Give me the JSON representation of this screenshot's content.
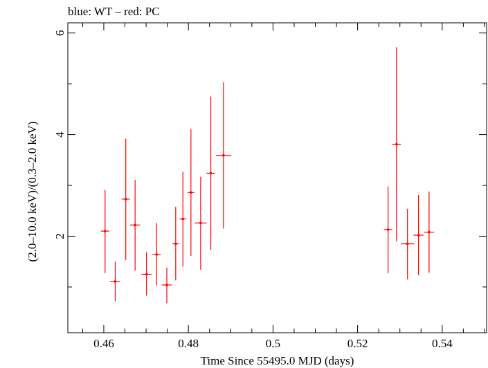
{
  "chart_data": {
    "type": "scatter",
    "title": "blue: WT – red: PC",
    "xlabel": "Time Since 55495.0 MJD (days)",
    "ylabel": "(2.0–10.0 keV)/(0.3–2.0 keV)",
    "xlim": [
      0.4515,
      0.5505
    ],
    "ylim": [
      0.1,
      6.2
    ],
    "x_ticks": [
      0.46,
      0.48,
      0.5,
      0.52,
      0.54
    ],
    "x_tick_labels": [
      "0.46",
      "0.48",
      "0.5",
      "0.52",
      "0.54"
    ],
    "x_minor_step": 0.005,
    "y_ticks": [
      2,
      4,
      6
    ],
    "y_tick_labels": [
      "2",
      "4",
      "6"
    ],
    "y_minor_step": 1,
    "grid": false,
    "series": [
      {
        "color": "#ff0000",
        "points": [
          {
            "x": 0.4603,
            "xerr": 0.001,
            "y": 2.1,
            "ylo": 1.27,
            "yhi": 2.91
          },
          {
            "x": 0.4627,
            "xerr": 0.0012,
            "y": 1.11,
            "ylo": 0.72,
            "yhi": 1.5
          },
          {
            "x": 0.4652,
            "xerr": 0.001,
            "y": 2.73,
            "ylo": 1.53,
            "yhi": 3.92
          },
          {
            "x": 0.4674,
            "xerr": 0.0012,
            "y": 2.22,
            "ylo": 1.32,
            "yhi": 3.11
          },
          {
            "x": 0.4701,
            "xerr": 0.0012,
            "y": 1.25,
            "ylo": 0.83,
            "yhi": 1.69
          },
          {
            "x": 0.4725,
            "xerr": 0.001,
            "y": 1.64,
            "ylo": 1.03,
            "yhi": 2.26
          },
          {
            "x": 0.4749,
            "xerr": 0.0012,
            "y": 1.04,
            "ylo": 0.68,
            "yhi": 1.38
          },
          {
            "x": 0.477,
            "xerr": 0.0008,
            "y": 1.85,
            "ylo": 1.13,
            "yhi": 2.58
          },
          {
            "x": 0.4787,
            "xerr": 0.0008,
            "y": 2.34,
            "ylo": 1.4,
            "yhi": 3.27
          },
          {
            "x": 0.4806,
            "xerr": 0.0008,
            "y": 2.86,
            "ylo": 1.61,
            "yhi": 4.11
          },
          {
            "x": 0.4829,
            "xerr": 0.0014,
            "y": 2.26,
            "ylo": 1.34,
            "yhi": 3.17
          },
          {
            "x": 0.4853,
            "xerr": 0.001,
            "y": 3.24,
            "ylo": 1.73,
            "yhi": 4.75
          },
          {
            "x": 0.4883,
            "xerr": 0.0018,
            "y": 3.59,
            "ylo": 2.15,
            "yhi": 5.03
          },
          {
            "x": 0.5272,
            "xerr": 0.001,
            "y": 2.13,
            "ylo": 1.27,
            "yhi": 2.98
          },
          {
            "x": 0.5292,
            "xerr": 0.001,
            "y": 3.81,
            "ylo": 1.9,
            "yhi": 5.72
          },
          {
            "x": 0.5318,
            "xerr": 0.0016,
            "y": 1.85,
            "ylo": 1.15,
            "yhi": 2.54
          },
          {
            "x": 0.5344,
            "xerr": 0.0012,
            "y": 2.02,
            "ylo": 1.23,
            "yhi": 2.81
          },
          {
            "x": 0.5369,
            "xerr": 0.0012,
            "y": 2.08,
            "ylo": 1.28,
            "yhi": 2.88
          }
        ]
      }
    ]
  }
}
